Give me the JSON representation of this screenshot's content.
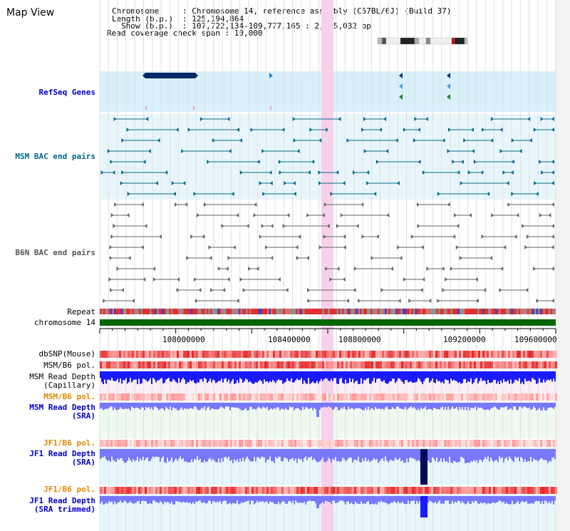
{
  "page": {
    "title": "Map View"
  },
  "info": {
    "chromosome_key": "Chromosome",
    "chromosome_val": ": Chromosome 14, reference assembly (C57BL/6J) (Build 37)",
    "length_key": "Length (b.p.)",
    "length_val": ": 125,194,864",
    "show_key": "Show (b.p.)",
    "show_val": ": 107,722,134-109,777,165 : 2,055,032 bp",
    "coverage_line": "Read coverage check span : 10,000"
  },
  "tracks": {
    "refseq": {
      "label": "RefSeq Genes",
      "color": "#0000cc"
    },
    "msm_bac": {
      "label": "MSM BAC end pairs",
      "color": "#006688"
    },
    "b6n_bac": {
      "label": "B6N BAC end pairs",
      "color": "#555555"
    },
    "repeat": {
      "label": "Repeat",
      "color": "#000000"
    },
    "chromosome": {
      "label": "chromosome 14",
      "color": "#000000"
    },
    "dbsnp": {
      "label": "dbSNP(Mouse)",
      "color": "#333333"
    },
    "msm_b6_pol_1": {
      "label": "MSM/B6 pol.",
      "color": "#333333"
    },
    "msm_read_depth_cap": {
      "label": "MSM Read Depth\n(Capillary)",
      "color": "#333333"
    },
    "msm_b6_pol_2": {
      "label": "MSM/B6 pol.",
      "color": "#e08800"
    },
    "msm_read_depth_sra": {
      "label": "MSM Read Depth\n(SRA)",
      "color": "#0000cc"
    },
    "jf1_b6_pol_1": {
      "label": "JF1/B6 pol.",
      "color": "#e08800"
    },
    "jf1_read_depth_sra": {
      "label": "JF1 Read Depth\n(SRA)",
      "color": "#0000cc"
    },
    "jf1_b6_pol_2": {
      "label": "JF1/B6 pol.",
      "color": "#e08800"
    },
    "jf1_read_depth_trim": {
      "label": "JF1 Read Depth\n(SRA trimmed)",
      "color": "#0000cc"
    }
  },
  "axis": {
    "ticks": [
      "108000000",
      "108400000",
      "108800000",
      "109200000",
      "109600000"
    ]
  },
  "colors": {
    "highlight": "#f8d0ec",
    "refseq_bg": "#d8f0fa",
    "chromosome_bar": "#006600",
    "gene_dark": "#002a66",
    "depth_blue": "#1a1aff",
    "depth_light": "#7777ff",
    "snp_red": "#ff5050"
  }
}
